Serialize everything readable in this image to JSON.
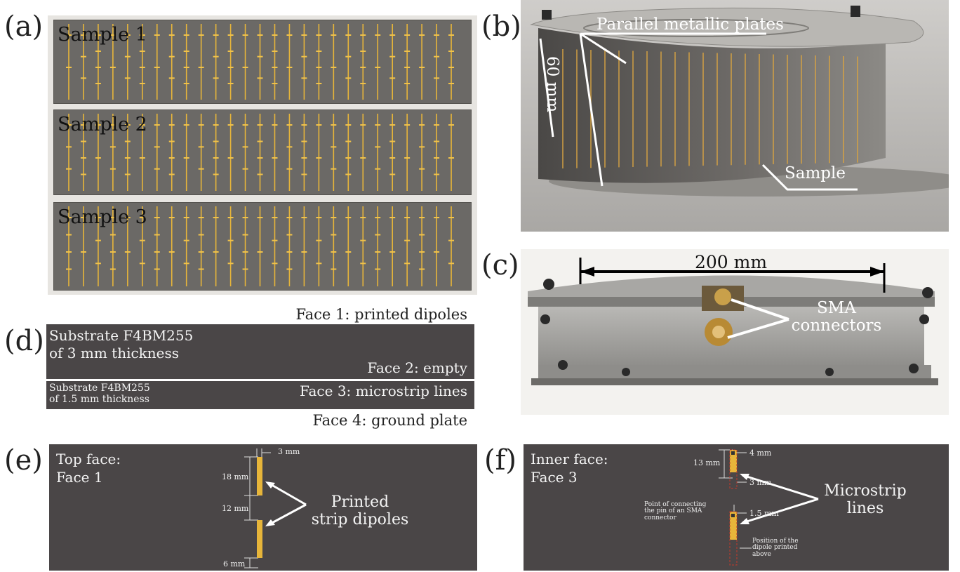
{
  "panel_labels": {
    "a": "(a)",
    "b": "(b)",
    "c": "(c)",
    "d": "(d)",
    "e": "(e)",
    "f": "(f)"
  },
  "a": {
    "samples": [
      "Sample 1",
      "Sample 2",
      "Sample 3"
    ]
  },
  "b": {
    "plates": "Parallel metallic plates",
    "height": "60 mm",
    "sample": "Sample"
  },
  "c": {
    "width": "200 mm",
    "connectors": "SMA connectors"
  },
  "d": {
    "face1": "Face 1: printed dipoles",
    "substrate_top_1": "Substrate F4BM255",
    "substrate_top_2": "of 3 mm thickness",
    "face2": "Face 2: empty",
    "substrate_bottom_1": "Substrate F4BM255",
    "substrate_bottom_2": "of 1.5 mm thickness",
    "face3": "Face 3: microstrip lines",
    "face4": "Face 4: ground plate"
  },
  "e": {
    "title_1": "Top face:",
    "title_2": "Face 1",
    "dim_width": "3 mm",
    "dim_dipole": "18 mm",
    "dim_gap": "12 mm",
    "dim_bottom": "6 mm",
    "callout_1": "Printed",
    "callout_2": "strip dipoles"
  },
  "f": {
    "title_1": "Inner face:",
    "title_2": "Face 3",
    "dim_top": "4 mm",
    "dim_len": "13 mm",
    "dim_width": "3 mm",
    "dim_pin": "1.5 mm",
    "pin_note_1": "Point of connecting",
    "pin_note_2": "the pin of an SMA",
    "pin_note_3": "connector",
    "pos_note_1": "Position of the",
    "pos_note_2": "dipole printed",
    "pos_note_3": "above",
    "callout_1": "Microstrip",
    "callout_2": "lines"
  },
  "colors": {
    "panel_dark": "#4a4647",
    "gold": "#e7b53a",
    "dipole_outline": "#c0392b"
  }
}
